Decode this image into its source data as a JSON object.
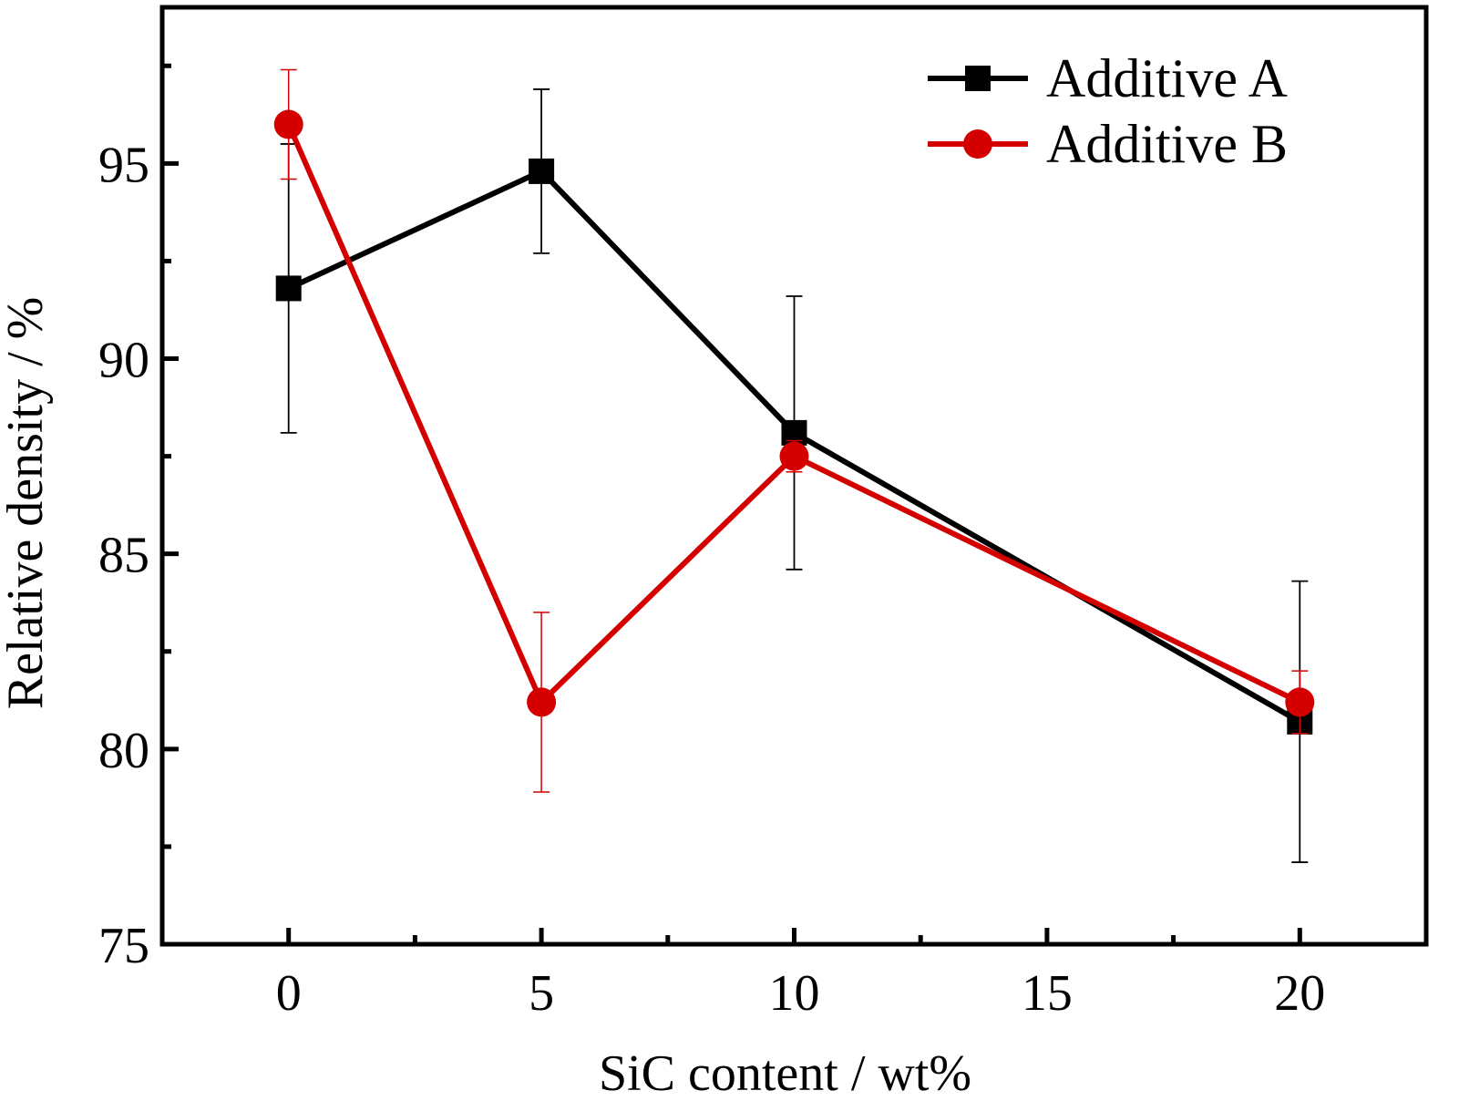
{
  "chart_data": {
    "type": "line",
    "title": "",
    "xlabel": "SiC content / wt%",
    "ylabel": "Relative density / %",
    "xlim": [
      -2.5,
      22.5
    ],
    "ylim": [
      75,
      99
    ],
    "x_ticks": [
      0,
      5,
      10,
      15,
      20
    ],
    "y_ticks": [
      75,
      80,
      85,
      90,
      95
    ],
    "x_minor_ticks": [
      2.5,
      7.5,
      12.5,
      17.5
    ],
    "y_minor_ticks": [
      77.5,
      82.5,
      87.5,
      92.5,
      97.5
    ],
    "grid": false,
    "legend_position": "top-right",
    "series": [
      {
        "name": "Additive A",
        "color": "#000000",
        "marker": "square",
        "x": [
          0,
          5,
          10,
          20
        ],
        "y": [
          91.8,
          94.8,
          88.1,
          80.7
        ],
        "error": [
          3.7,
          2.1,
          3.5,
          3.6
        ]
      },
      {
        "name": "Additive B",
        "color": "#d40000",
        "marker": "circle",
        "x": [
          0,
          5,
          10,
          20
        ],
        "y": [
          96.0,
          81.2,
          87.5,
          81.2
        ],
        "error": [
          1.4,
          2.3,
          0.4,
          0.8
        ]
      }
    ]
  }
}
